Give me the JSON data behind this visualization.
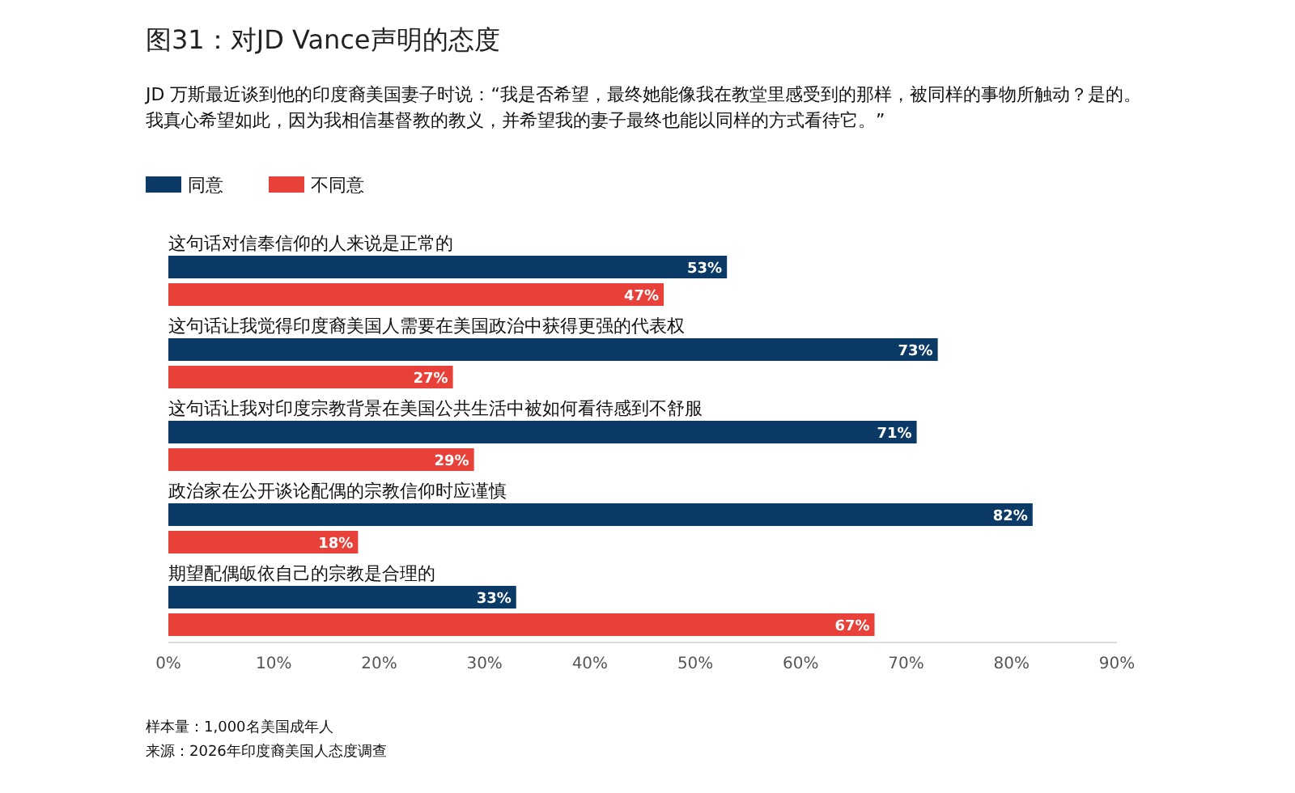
{
  "chart_data": {
    "type": "bar",
    "orientation": "horizontal",
    "title": "图31：对JD Vance声明的态度",
    "subtitle": "JD 万斯最近谈到他的印度裔美国妻子时说：“我是否希望，最终她能像我在教堂里感受到的那样，被同样的事物所触动？是的。我真心希望如此，因为我相信基督教的教义，并希望我的妻子最终也能以同样的方式看待它。”",
    "categories": [
      "这句话对信奉信仰的人来说是正常的",
      "这句话让我觉得印度裔美国人需要在美国政治中获得更强的代表权",
      "这句话让我对印度宗教背景在美国公共生活中被如何看待感到不舒服",
      "政治家在公开谈论配偶的宗教信仰时应谨慎",
      "期望配偶皈依自己的宗教是合理的"
    ],
    "series": [
      {
        "name": "同意",
        "color": "#0b3a66",
        "values": [
          53,
          73,
          71,
          82,
          33
        ],
        "value_labels": [
          "53%",
          "73%",
          "71%",
          "82%",
          "33%"
        ]
      },
      {
        "name": "不同意",
        "color": "#e8413a",
        "values": [
          47,
          27,
          29,
          18,
          67
        ],
        "value_labels": [
          "47%",
          "27%",
          "29%",
          "18%",
          "67%"
        ]
      }
    ],
    "xlim": [
      0,
      90
    ],
    "xticks": [
      {
        "value": 0,
        "label": "0%"
      },
      {
        "value": 10,
        "label": "10%"
      },
      {
        "value": 20,
        "label": "20%"
      },
      {
        "value": 30,
        "label": "30%"
      },
      {
        "value": 40,
        "label": "40%"
      },
      {
        "value": 50,
        "label": "50%"
      },
      {
        "value": 60,
        "label": "60%"
      },
      {
        "value": 70,
        "label": "70%"
      },
      {
        "value": 80,
        "label": "80%"
      },
      {
        "value": 90,
        "label": "90%"
      }
    ],
    "legend": "top left",
    "annotations": [
      "样本量：1,000名美国成年人",
      "来源：2026年印度裔美国人态度调查"
    ]
  }
}
